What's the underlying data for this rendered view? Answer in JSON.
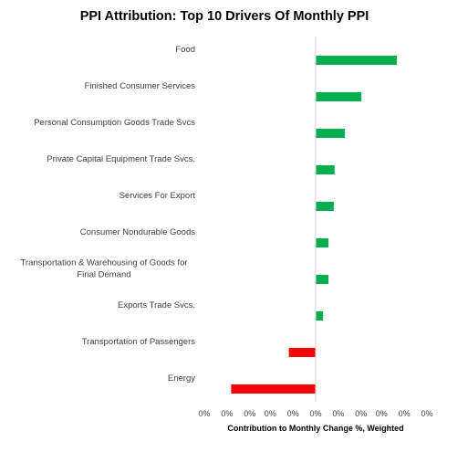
{
  "chart_data": {
    "type": "bar",
    "orientation": "horizontal",
    "title": "PPI Attribution: Top 10 Drivers Of Monthly PPI",
    "xlabel": "Contribution to Monthly Change %, Weighted",
    "ylabel": "",
    "categories": [
      [
        "Food"
      ],
      [
        "Finished Consumer Services"
      ],
      [
        "Personal Consumption Goods Trade Svcs"
      ],
      [
        "Private Capital Equipment Trade Svcs."
      ],
      [
        "Services For Export"
      ],
      [
        "Consumer Nondurable Goods"
      ],
      [
        "Transportation & Warehousing of Goods for",
        "Final Demand"
      ],
      [
        "Exports Trade Svcs."
      ],
      [
        "Transportation of Passengers"
      ],
      [
        "Energy"
      ]
    ],
    "values": [
      0.00394,
      0.00222,
      0.00142,
      0.00092,
      0.00088,
      0.00062,
      0.00062,
      0.00036,
      -0.0013,
      -0.0041
    ],
    "xlim": [
      -0.0054,
      0.0054
    ],
    "x_tick_values": [
      -0.0054,
      -0.0043,
      -0.0032,
      -0.0022,
      -0.0011,
      0,
      0.0011,
      0.0022,
      0.0032,
      0.0043,
      0.0054
    ],
    "x_tick_labels": [
      "0%",
      "0%",
      "0%",
      "0%",
      "0%",
      "0%",
      "0%",
      "0%",
      "0%",
      "0%",
      "0%"
    ],
    "colors": {
      "positive": "#00b050",
      "negative": "#ff0000",
      "axis": "#d9d9d9"
    },
    "grid": false,
    "legend": "none"
  }
}
